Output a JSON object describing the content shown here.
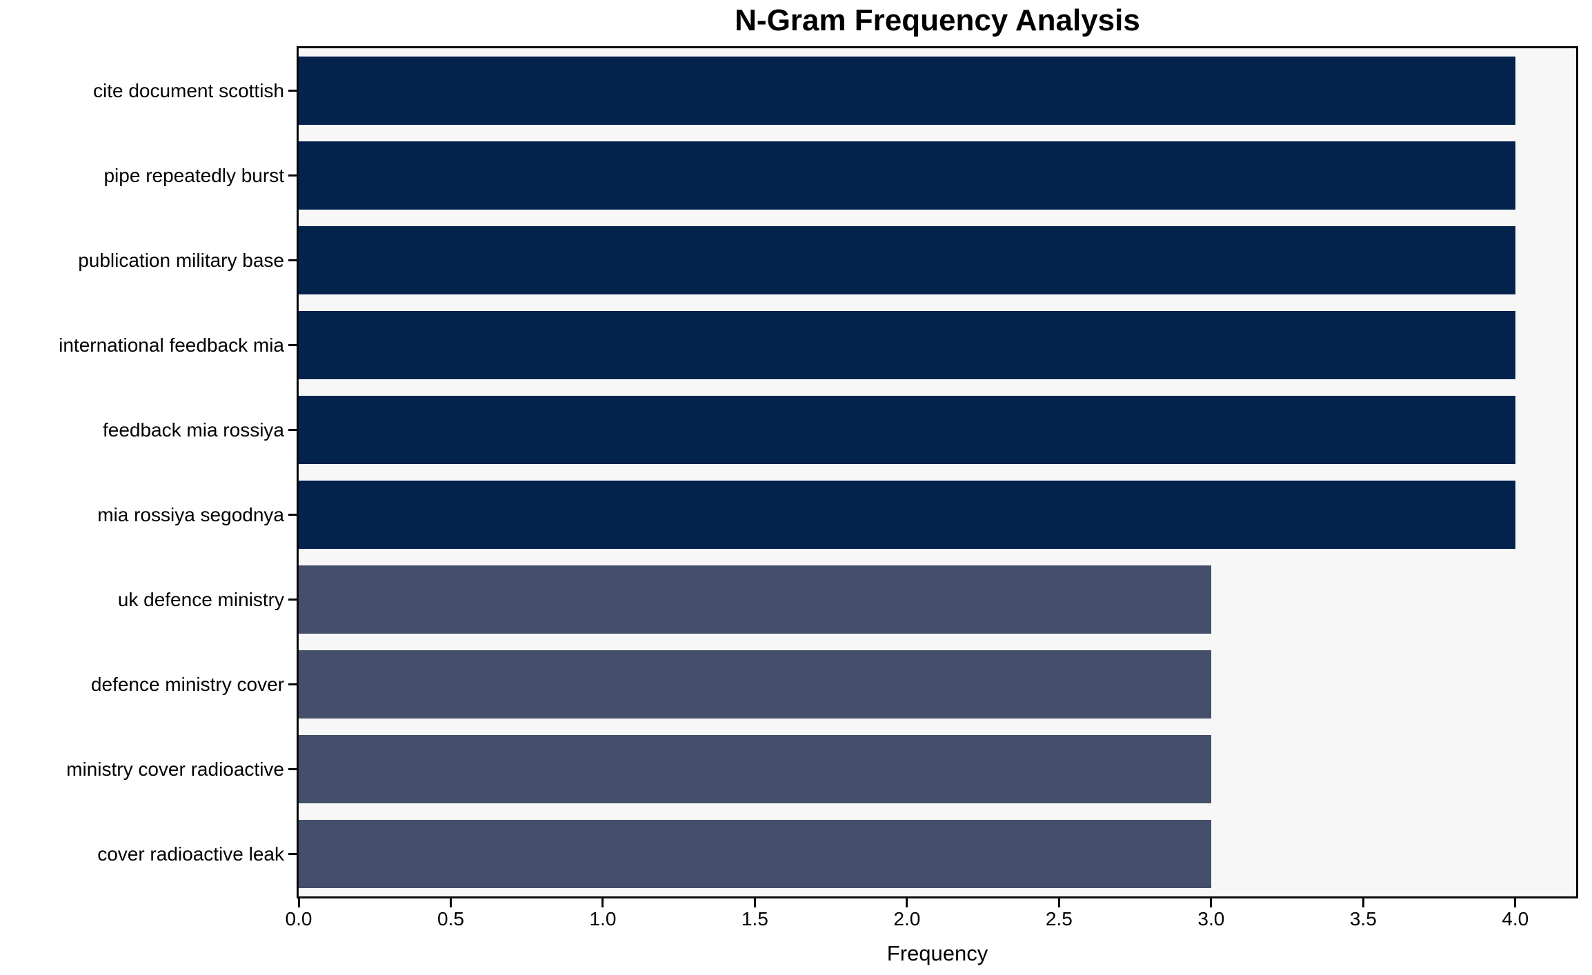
{
  "chart_data": {
    "type": "bar",
    "orientation": "horizontal",
    "title": "N-Gram Frequency Analysis",
    "xlabel": "Frequency",
    "ylabel": "",
    "categories": [
      "cite document scottish",
      "pipe repeatedly burst",
      "publication military base",
      "international feedback mia",
      "feedback mia rossiya",
      "mia rossiya segodnya",
      "uk defence ministry",
      "defence ministry cover",
      "ministry cover radioactive",
      "cover radioactive leak"
    ],
    "values": [
      4,
      4,
      4,
      4,
      4,
      4,
      3,
      3,
      3,
      3
    ],
    "bar_colors": [
      "#03234d",
      "#03234d",
      "#03234d",
      "#03234d",
      "#03234d",
      "#03234d",
      "#444f6b",
      "#444f6b",
      "#444f6b",
      "#444f6b"
    ],
    "xlim": [
      0,
      4.2
    ],
    "xticks": [
      0,
      0.5,
      1,
      1.5,
      2,
      2.5,
      3,
      3.5,
      4
    ],
    "xtick_labels": [
      "0.0",
      "0.5",
      "1.0",
      "1.5",
      "2.0",
      "2.5",
      "3.0",
      "3.5",
      "4.0"
    ],
    "grid": false,
    "legend": null,
    "colors": {
      "high_freq_bar": "#03234d",
      "low_freq_bar": "#444f6b",
      "plot_background": "#f7f7f7",
      "figure_background": "#ffffff",
      "axis": "#0a0a0a",
      "text": "#000000"
    }
  }
}
